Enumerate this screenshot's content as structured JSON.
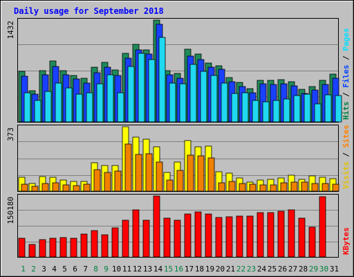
{
  "chart_data": {
    "type": "bar",
    "title": "Daily usage for September 2018",
    "x": [
      1,
      2,
      3,
      4,
      5,
      6,
      7,
      8,
      9,
      10,
      11,
      12,
      13,
      14,
      15,
      16,
      17,
      18,
      19,
      20,
      21,
      22,
      23,
      24,
      25,
      26,
      27,
      28,
      29,
      30,
      31
    ],
    "weekend_days": [
      1,
      2,
      8,
      9,
      15,
      16,
      22,
      23,
      29,
      30
    ],
    "panels": [
      {
        "name": "hits-files-pages",
        "ymax_label": "1432",
        "ymax": 1432,
        "right_labels": [
          {
            "text": "Hits",
            "color": "#008040"
          },
          {
            "text": " / ",
            "color": "#000000"
          },
          {
            "text": "Files",
            "color": "#0040ff"
          },
          {
            "text": " / ",
            "color": "#000000"
          },
          {
            "text": "Pages",
            "color": "#00e0ff"
          }
        ],
        "series": [
          {
            "name": "Hits",
            "color": "#208a5a",
            "values": [
              707,
              439,
              717,
              854,
              717,
              654,
              610,
              766,
              837,
              727,
              964,
              1089,
              1012,
              1432,
              722,
              683,
              1022,
              952,
              831,
              793,
              621,
              556,
              464,
              585,
              586,
              597,
              561,
              458,
              498,
              580,
              674
            ]
          },
          {
            "name": "Files",
            "color": "#1a40ff",
            "values": [
              646,
              385,
              663,
              781,
              667,
              603,
              549,
              689,
              770,
              652,
              897,
              1012,
              950,
              1373,
              659,
              615,
              927,
              873,
              773,
              736,
              568,
              497,
              414,
              532,
              529,
              540,
              509,
              404,
              446,
              529,
              614
            ]
          },
          {
            "name": "Pages",
            "color": "#20d8f0",
            "values": [
              406,
              306,
              432,
              549,
              481,
              387,
              411,
              537,
              662,
              414,
              779,
              964,
              881,
              1189,
              545,
              535,
              806,
              710,
              651,
              541,
              395,
              414,
              298,
              287,
              304,
              318,
              366,
              390,
              249,
              381,
              369
            ]
          }
        ]
      },
      {
        "name": "visits-sites",
        "ymax_label": "373",
        "ymax": 373,
        "right_labels": [
          {
            "text": "Visits",
            "color": "#e0c000"
          },
          {
            "text": " / ",
            "color": "#000000"
          },
          {
            "text": "Sites",
            "color": "#ff8000"
          }
        ],
        "series": [
          {
            "name": "Visits",
            "color": "#ffff00",
            "values": [
              80,
              46,
              84,
              82,
              63,
              55,
              55,
              163,
              149,
              150,
              373,
              311,
              302,
              256,
              110,
              168,
              293,
              256,
              260,
              114,
              106,
              76,
              52,
              66,
              67,
              77,
              92,
              67,
              88,
              82,
              73
            ]
          },
          {
            "name": "Sites",
            "color": "#f08000",
            "values": [
              40,
              27,
              46,
              48,
              37,
              32,
              39,
              125,
              110,
              117,
              272,
              214,
              215,
              169,
              63,
              122,
              208,
              204,
              194,
              49,
              56,
              43,
              39,
              37,
              38,
              47,
              52,
              53,
              44,
              46,
              41
            ]
          }
        ]
      },
      {
        "name": "kbytes",
        "ymax_label": "150180",
        "ymax": 150180,
        "right_labels": [
          {
            "text": "KBytes",
            "color": "#ff0000"
          }
        ],
        "series": [
          {
            "name": "KBytes",
            "color": "#ff0000",
            "values": [
              46900,
              30700,
              42600,
              45900,
              47700,
              46400,
              56700,
              64200,
              55400,
              72100,
              90700,
              115900,
              90200,
              150180,
              95300,
              91000,
              106400,
              110900,
              105500,
              97200,
              99200,
              101400,
              101400,
              108600,
              108600,
              111900,
              116700,
              96200,
              73600,
              147700,
              null
            ]
          }
        ]
      }
    ]
  }
}
